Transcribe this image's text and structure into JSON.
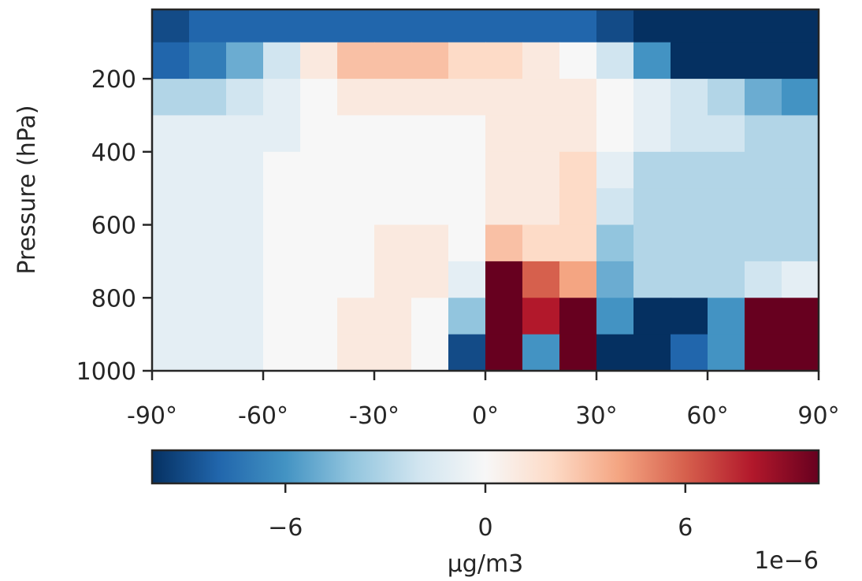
{
  "chart_data": {
    "type": "heatmap",
    "title": "",
    "xlabel": "",
    "ylabel": "Pressure (hPa)",
    "x_tick_labels": [
      "-90°",
      "-60°",
      "-30°",
      "0°",
      "30°",
      "60°",
      "90°"
    ],
    "x_ticks": [
      -90,
      -60,
      -30,
      0,
      30,
      60,
      90
    ],
    "xlim": [
      -90,
      90
    ],
    "y_tick_labels": [
      "200",
      "400",
      "600",
      "800",
      "1000"
    ],
    "y_ticks": [
      200,
      400,
      600,
      800,
      1000
    ],
    "ylim": [
      1000,
      10
    ],
    "y_inverted": true,
    "colormap": "RdBu_r",
    "colormap_colors": [
      "#053061",
      "#2166ac",
      "#4393c3",
      "#92c5de",
      "#d1e5f0",
      "#f7f7f7",
      "#fddbc7",
      "#f4a582",
      "#d6604d",
      "#b2182b",
      "#67001f"
    ],
    "z_range": [
      -1e-05,
      1e-05
    ],
    "colorbar": {
      "tick_labels": [
        "−6",
        "0",
        "6"
      ],
      "tick_values": [
        -6,
        0,
        6
      ],
      "range": [
        -10,
        10
      ],
      "offset_label": "1e−6",
      "label": "µg/m3",
      "orientation": "horizontal"
    },
    "grid": false,
    "x_centers": [
      -85,
      -75,
      -65,
      -55,
      -45,
      -35,
      -25,
      -15,
      -5,
      5,
      15,
      25,
      35,
      45,
      55,
      65,
      75,
      85
    ],
    "y_centers": [
      50,
      150,
      250,
      350,
      450,
      550,
      650,
      750,
      850,
      950
    ],
    "values": [
      [
        -9,
        -8,
        -8,
        -8,
        -8,
        -8,
        -8,
        -8,
        -8,
        -8,
        -8,
        -8,
        -9,
        -10,
        -10,
        -10,
        -10,
        -10
      ],
      [
        -8,
        -7,
        -5,
        -2,
        1,
        3,
        3,
        3,
        2,
        2,
        1,
        0,
        -2,
        -6,
        -10,
        -10,
        -10,
        -10
      ],
      [
        -3,
        -3,
        -2,
        -1,
        0,
        1,
        1,
        1,
        1,
        1,
        1,
        1,
        0,
        -1,
        -2,
        -3,
        -5,
        -6
      ],
      [
        -1,
        -1,
        -1,
        -1,
        0,
        0,
        0,
        0,
        0,
        1,
        1,
        1,
        0,
        -1,
        -2,
        -2,
        -3,
        -3
      ],
      [
        -1,
        -1,
        -1,
        0,
        0,
        0,
        0,
        0,
        0,
        1,
        1,
        2,
        -1,
        -3,
        -3,
        -3,
        -3,
        -3
      ],
      [
        -1,
        -1,
        -1,
        0,
        0,
        0,
        0,
        0,
        0,
        1,
        1,
        2,
        -2,
        -3,
        -3,
        -3,
        -3,
        -3
      ],
      [
        -1,
        -1,
        -1,
        0,
        0,
        0,
        1,
        1,
        0,
        3,
        2,
        2,
        -4,
        -3,
        -3,
        -3,
        -3,
        -3
      ],
      [
        -1,
        -1,
        -1,
        0,
        0,
        0,
        1,
        1,
        -1,
        10,
        6,
        4,
        -5,
        -3,
        -3,
        -3,
        -2,
        -1
      ],
      [
        -1,
        -1,
        -1,
        0,
        0,
        1,
        1,
        0,
        -4,
        10,
        8,
        10,
        -6,
        -10,
        -10,
        -6,
        10,
        10
      ],
      [
        -1,
        -1,
        -1,
        0,
        0,
        1,
        1,
        0,
        -9,
        10,
        -6,
        10,
        -10,
        -10,
        -8,
        -6,
        10,
        10
      ]
    ]
  }
}
